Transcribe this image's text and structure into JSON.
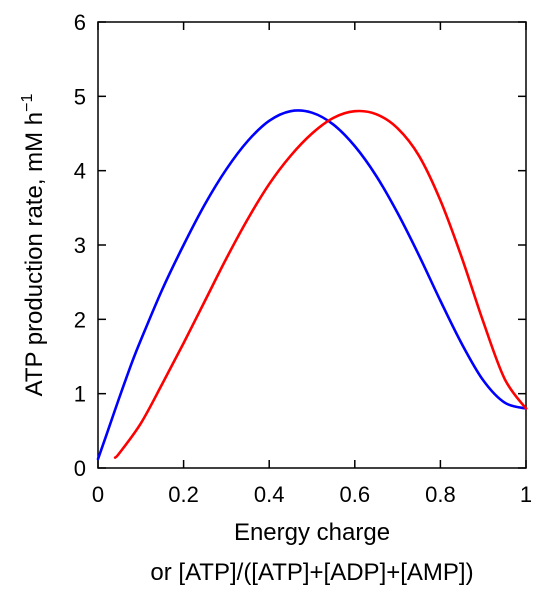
{
  "chart_data": {
    "type": "line",
    "xlabel": "Energy charge",
    "xlabel_line2": "or [ATP]/([ATP]+[ADP]+[AMP])",
    "ylabel": "ATP production rate, mM h",
    "ylabel_superscript": "−1",
    "xlim": [
      0,
      1
    ],
    "ylim": [
      0,
      6
    ],
    "x_ticks": [
      0,
      0.2,
      0.4,
      0.6,
      0.8,
      1
    ],
    "x_tick_labels": [
      "0",
      "0.2",
      "0.4",
      "0.6",
      "0.8",
      "1"
    ],
    "y_ticks": [
      0,
      1,
      2,
      3,
      4,
      5,
      6
    ],
    "y_tick_labels": [
      "0",
      "1",
      "2",
      "3",
      "4",
      "5",
      "6"
    ],
    "grid": false,
    "series": [
      {
        "color": "#0000ff",
        "x": [
          0.0,
          0.02,
          0.05,
          0.08,
          0.1,
          0.15,
          0.2,
          0.25,
          0.3,
          0.35,
          0.4,
          0.45,
          0.5,
          0.55,
          0.6,
          0.65,
          0.7,
          0.75,
          0.8,
          0.85,
          0.9,
          0.95,
          1.0
        ],
        "values": [
          0.12,
          0.45,
          0.95,
          1.43,
          1.72,
          2.4,
          3.0,
          3.55,
          4.02,
          4.4,
          4.67,
          4.8,
          4.78,
          4.62,
          4.33,
          3.93,
          3.43,
          2.86,
          2.25,
          1.67,
          1.18,
          0.88,
          0.8
        ]
      },
      {
        "color": "#ff0000",
        "x": [
          0.04,
          0.05,
          0.1,
          0.15,
          0.2,
          0.25,
          0.3,
          0.35,
          0.4,
          0.45,
          0.5,
          0.55,
          0.6,
          0.65,
          0.7,
          0.75,
          0.8,
          0.85,
          0.9,
          0.95,
          1.0
        ],
        "values": [
          0.14,
          0.2,
          0.6,
          1.13,
          1.68,
          2.25,
          2.82,
          3.35,
          3.82,
          4.2,
          4.5,
          4.71,
          4.8,
          4.76,
          4.57,
          4.2,
          3.6,
          2.83,
          1.97,
          1.2,
          0.8
        ]
      }
    ]
  }
}
